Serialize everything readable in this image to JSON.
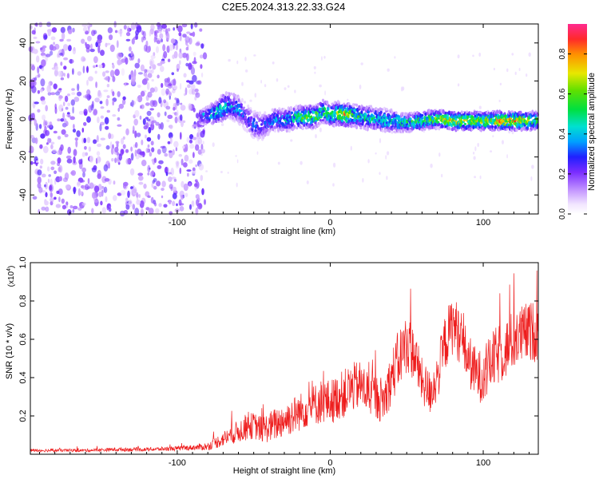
{
  "title": "C2E5.2024.313.22.33.G24",
  "chart_data": [
    {
      "type": "heatmap",
      "xlabel": "Height of straight line (km)",
      "ylabel": "Frequency (Hz)",
      "xlim": [
        -196,
        136
      ],
      "ylim": [
        -50,
        50
      ],
      "xticks": [
        -100,
        0,
        100
      ],
      "yticks": [
        -40,
        -20,
        0,
        20,
        40
      ],
      "colorbar": {
        "label": "Normalized spectral amplitude",
        "range": [
          0,
          0.95
        ],
        "ticks": [
          0.0,
          0.2,
          0.4,
          0.6,
          0.8
        ]
      },
      "noise_region_x": [
        -196,
        -85
      ],
      "ridge": {
        "x": [
          -85,
          -80,
          -75,
          -70,
          -65,
          -60,
          -55,
          -50,
          -45,
          -40,
          -35,
          -30,
          -25,
          -20,
          -15,
          -10,
          -5,
          0,
          5,
          10,
          15,
          20,
          30,
          40,
          50,
          60,
          70,
          80,
          90,
          100,
          110,
          120,
          130,
          136
        ],
        "y_hz": [
          1,
          2,
          3,
          6,
          7,
          5,
          1,
          -3,
          -4,
          -2,
          0,
          -1,
          0,
          1,
          1,
          1,
          4,
          2,
          3,
          2,
          2,
          1,
          0,
          -1,
          -2,
          -1,
          0,
          -1,
          -1,
          -1,
          -1,
          -1,
          -1,
          -1
        ],
        "width_hz": [
          3,
          4,
          5,
          6,
          6,
          6,
          6,
          6,
          6,
          5,
          5,
          5,
          5,
          5,
          5,
          5,
          5,
          5,
          5,
          5,
          5,
          5,
          5,
          5,
          4,
          4,
          4,
          4,
          4,
          4,
          4,
          4,
          4,
          4
        ],
        "amplitude": [
          0.4,
          0.45,
          0.5,
          0.5,
          0.45,
          0.4,
          0.3,
          0.35,
          0.3,
          0.35,
          0.4,
          0.45,
          0.5,
          0.6,
          0.6,
          0.65,
          0.6,
          0.55,
          0.7,
          0.8,
          0.6,
          0.55,
          0.5,
          0.5,
          0.55,
          0.6,
          0.7,
          0.8,
          0.75,
          0.7,
          0.8,
          0.85,
          0.7,
          0.6
        ]
      }
    },
    {
      "type": "line",
      "xlabel": "Height of straight line (km)",
      "ylabel": "SNR (10 * v/v)",
      "y_multiplier_label": "(x10",
      "y_multiplier_exp": "4",
      "y_multiplier_close": ")",
      "xlim": [
        -196,
        136
      ],
      "ylim": [
        0,
        1.0
      ],
      "xticks": [
        -100,
        0,
        100
      ],
      "yticks": [
        0.2,
        0.4,
        0.6,
        0.8,
        1.0
      ],
      "series": [
        {
          "color": "#ee1c1c",
          "x": [
            -196,
            -180,
            -160,
            -140,
            -120,
            -100,
            -90,
            -80,
            -75,
            -70,
            -65,
            -60,
            -55,
            -50,
            -45,
            -40,
            -35,
            -30,
            -25,
            -20,
            -15,
            -10,
            -5,
            0,
            5,
            10,
            15,
            20,
            25,
            30,
            35,
            40,
            45,
            50,
            55,
            60,
            65,
            70,
            75,
            80,
            85,
            90,
            95,
            100,
            105,
            110,
            115,
            120,
            125,
            130,
            136
          ],
          "y": [
            0.02,
            0.02,
            0.02,
            0.025,
            0.025,
            0.03,
            0.035,
            0.04,
            0.06,
            0.08,
            0.1,
            0.12,
            0.14,
            0.15,
            0.13,
            0.14,
            0.16,
            0.18,
            0.2,
            0.22,
            0.24,
            0.26,
            0.28,
            0.27,
            0.3,
            0.32,
            0.35,
            0.36,
            0.32,
            0.3,
            0.28,
            0.4,
            0.5,
            0.58,
            0.52,
            0.38,
            0.32,
            0.4,
            0.58,
            0.68,
            0.62,
            0.5,
            0.42,
            0.4,
            0.48,
            0.52,
            0.55,
            0.6,
            0.62,
            0.64,
            0.64
          ],
          "noise": [
            0.008,
            0.008,
            0.008,
            0.01,
            0.01,
            0.012,
            0.014,
            0.02,
            0.03,
            0.04,
            0.05,
            0.06,
            0.07,
            0.07,
            0.07,
            0.08,
            0.09,
            0.09,
            0.1,
            0.1,
            0.1,
            0.11,
            0.12,
            0.12,
            0.12,
            0.13,
            0.13,
            0.13,
            0.12,
            0.12,
            0.12,
            0.14,
            0.16,
            0.16,
            0.14,
            0.12,
            0.12,
            0.13,
            0.15,
            0.16,
            0.15,
            0.14,
            0.14,
            0.14,
            0.15,
            0.16,
            0.16,
            0.16,
            0.16,
            0.16,
            0.16
          ]
        }
      ]
    }
  ]
}
